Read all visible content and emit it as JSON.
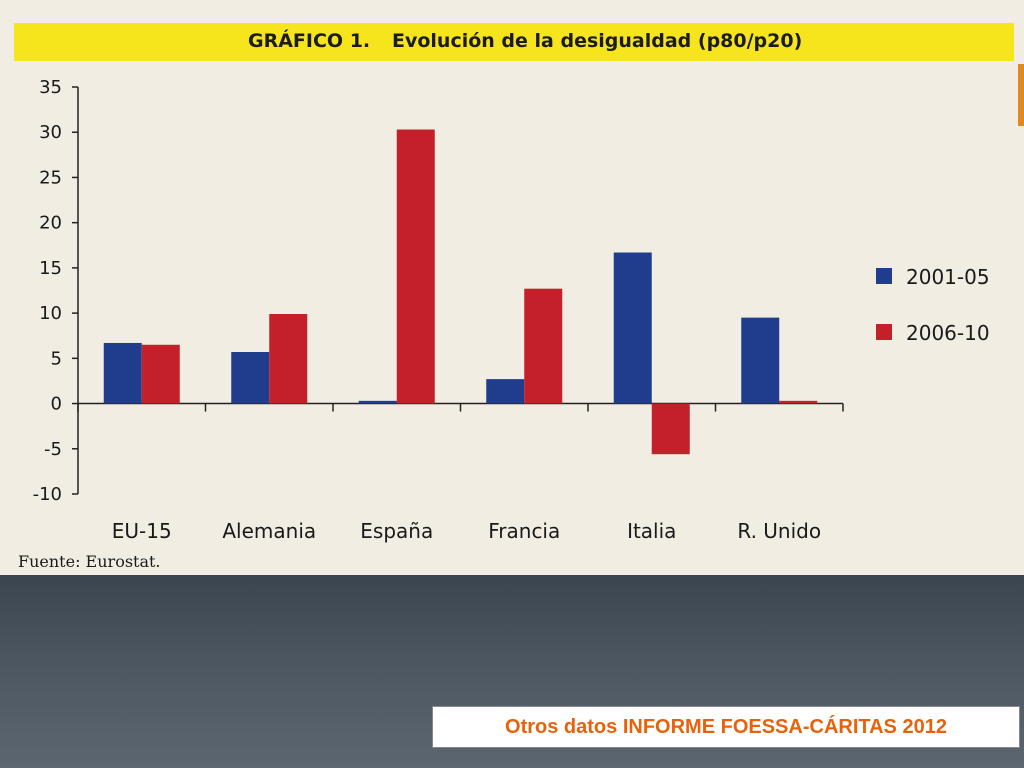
{
  "slide": {
    "caption": "Otros datos INFORME FOESSA-CÁRITAS 2012"
  },
  "figure": {
    "label": "GRÁFICO 1.",
    "source": "Fuente: Eurostat."
  },
  "colors": {
    "series_2001_05": "#1f3d8c",
    "series_2006_10": "#c4202a",
    "title_band": "#f6e51c",
    "caption_text": "#e8620c"
  },
  "chart_data": {
    "type": "bar",
    "title": "Evolución de la desigualdad (p80/p20)",
    "categories": [
      "EU-15",
      "Alemania",
      "España",
      "Francia",
      "Italia",
      "R. Unido"
    ],
    "series": [
      {
        "name": "2001-05",
        "values": [
          6.7,
          5.7,
          0.3,
          2.7,
          16.7,
          9.5
        ]
      },
      {
        "name": "2006-10",
        "values": [
          6.5,
          9.9,
          30.3,
          12.7,
          -5.6,
          0.3
        ]
      }
    ],
    "yticks": [
      "35",
      "30",
      "25",
      "20",
      "15",
      "10",
      "5",
      "0",
      "-5",
      "-10"
    ],
    "ylim": [
      -10,
      35
    ],
    "xlabel": "",
    "ylabel": "",
    "grid": false,
    "legend": "right"
  }
}
